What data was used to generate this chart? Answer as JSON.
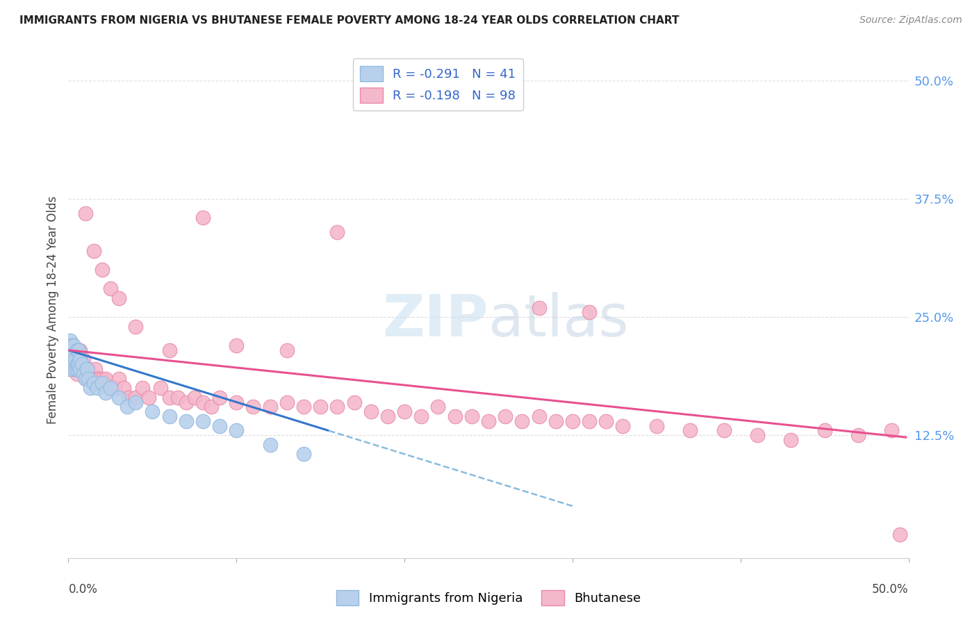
{
  "title": "IMMIGRANTS FROM NIGERIA VS BHUTANESE FEMALE POVERTY AMONG 18-24 YEAR OLDS CORRELATION CHART",
  "source": "Source: ZipAtlas.com",
  "ylabel": "Female Poverty Among 18-24 Year Olds",
  "nigeria_R": -0.291,
  "nigeria_N": 41,
  "bhutan_R": -0.198,
  "bhutan_N": 98,
  "nigeria_color": "#b8d0eb",
  "nigeria_edge_color": "#90b8e0",
  "bhutan_color": "#f4b8cb",
  "bhutan_edge_color": "#e888a8",
  "nigeria_line_color": "#3377cc",
  "bhutan_line_color": "#e85090",
  "nigeria_dash_color": "#88bbdd",
  "background_color": "#ffffff",
  "grid_color": "#dddddd",
  "xlim": [
    0.0,
    0.5
  ],
  "ylim": [
    -0.005,
    0.52
  ],
  "ytick_values": [
    0.125,
    0.25,
    0.375,
    0.5
  ],
  "nigeria_x": [
    0.001,
    0.001,
    0.001,
    0.002,
    0.002,
    0.002,
    0.002,
    0.003,
    0.003,
    0.003,
    0.004,
    0.004,
    0.005,
    0.005,
    0.005,
    0.006,
    0.006,
    0.007,
    0.007,
    0.008,
    0.009,
    0.01,
    0.011,
    0.012,
    0.013,
    0.015,
    0.017,
    0.02,
    0.022,
    0.025,
    0.03,
    0.035,
    0.04,
    0.05,
    0.06,
    0.07,
    0.08,
    0.09,
    0.1,
    0.12,
    0.14
  ],
  "nigeria_y": [
    0.205,
    0.215,
    0.225,
    0.195,
    0.205,
    0.215,
    0.22,
    0.2,
    0.21,
    0.22,
    0.195,
    0.205,
    0.195,
    0.2,
    0.215,
    0.2,
    0.215,
    0.195,
    0.205,
    0.2,
    0.19,
    0.185,
    0.195,
    0.185,
    0.175,
    0.18,
    0.175,
    0.18,
    0.17,
    0.175,
    0.165,
    0.155,
    0.16,
    0.15,
    0.145,
    0.14,
    0.14,
    0.135,
    0.13,
    0.115,
    0.105
  ],
  "bhutan_x": [
    0.001,
    0.001,
    0.001,
    0.001,
    0.002,
    0.002,
    0.002,
    0.002,
    0.003,
    0.003,
    0.003,
    0.004,
    0.004,
    0.004,
    0.005,
    0.005,
    0.005,
    0.006,
    0.006,
    0.007,
    0.007,
    0.008,
    0.008,
    0.009,
    0.01,
    0.01,
    0.011,
    0.012,
    0.013,
    0.014,
    0.015,
    0.016,
    0.017,
    0.018,
    0.02,
    0.022,
    0.025,
    0.028,
    0.03,
    0.033,
    0.036,
    0.04,
    0.044,
    0.048,
    0.055,
    0.06,
    0.065,
    0.07,
    0.075,
    0.08,
    0.085,
    0.09,
    0.1,
    0.11,
    0.12,
    0.13,
    0.14,
    0.15,
    0.16,
    0.17,
    0.18,
    0.19,
    0.2,
    0.21,
    0.22,
    0.23,
    0.24,
    0.25,
    0.26,
    0.27,
    0.28,
    0.29,
    0.3,
    0.31,
    0.32,
    0.33,
    0.35,
    0.37,
    0.39,
    0.41,
    0.43,
    0.45,
    0.47,
    0.49,
    0.495,
    0.01,
    0.015,
    0.02,
    0.025,
    0.03,
    0.04,
    0.06,
    0.08,
    0.1,
    0.13,
    0.16,
    0.28,
    0.31
  ],
  "bhutan_y": [
    0.195,
    0.205,
    0.21,
    0.215,
    0.195,
    0.2,
    0.21,
    0.22,
    0.195,
    0.205,
    0.215,
    0.195,
    0.205,
    0.21,
    0.19,
    0.2,
    0.215,
    0.2,
    0.21,
    0.205,
    0.215,
    0.195,
    0.2,
    0.205,
    0.185,
    0.195,
    0.195,
    0.195,
    0.185,
    0.185,
    0.185,
    0.195,
    0.185,
    0.185,
    0.185,
    0.185,
    0.175,
    0.175,
    0.185,
    0.175,
    0.165,
    0.165,
    0.175,
    0.165,
    0.175,
    0.165,
    0.165,
    0.16,
    0.165,
    0.16,
    0.155,
    0.165,
    0.16,
    0.155,
    0.155,
    0.16,
    0.155,
    0.155,
    0.155,
    0.16,
    0.15,
    0.145,
    0.15,
    0.145,
    0.155,
    0.145,
    0.145,
    0.14,
    0.145,
    0.14,
    0.145,
    0.14,
    0.14,
    0.14,
    0.14,
    0.135,
    0.135,
    0.13,
    0.13,
    0.125,
    0.12,
    0.13,
    0.125,
    0.13,
    0.02,
    0.36,
    0.32,
    0.3,
    0.28,
    0.27,
    0.24,
    0.215,
    0.355,
    0.22,
    0.215,
    0.34,
    0.26,
    0.255
  ]
}
